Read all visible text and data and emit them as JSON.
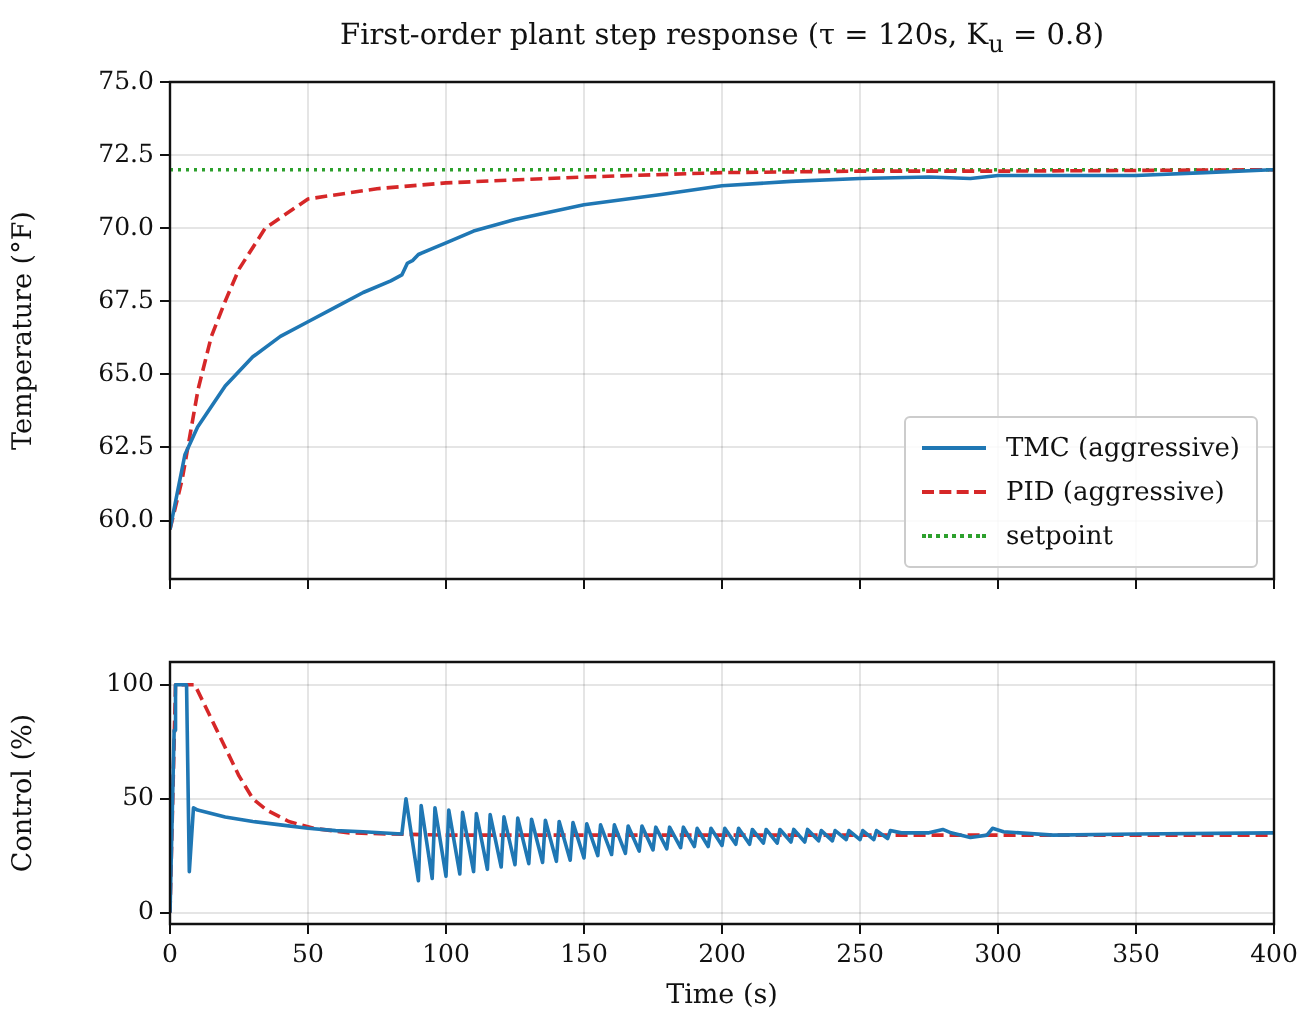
{
  "chart_data": [
    {
      "type": "line",
      "title": "First-order plant step response (τ = 120s, K$_{u}$ = 0.8)",
      "ylabel": "Temperature (°F)",
      "xlim": [
        0,
        400
      ],
      "xticks": [
        0,
        50,
        100,
        150,
        200,
        250,
        300,
        350,
        400
      ],
      "ylim": [
        58,
        75
      ],
      "yticks": [
        {
          "value": 60,
          "label": "60.0"
        },
        {
          "value": 62.5,
          "label": "62.5"
        },
        {
          "value": 65,
          "label": "65.0"
        },
        {
          "value": 67.5,
          "label": "67.5"
        },
        {
          "value": 70,
          "label": "70.0"
        },
        {
          "value": 72.5,
          "label": "72.5"
        },
        {
          "value": 75,
          "label": "75.0"
        }
      ],
      "grid": true,
      "legend": "bottom right",
      "tick_labels": "y",
      "series": [
        {
          "name": "TMC (aggressive)",
          "color": "#1f77b4",
          "line_style": "solid",
          "x": [
            0,
            5.4,
            10,
            20,
            30,
            40,
            50,
            60,
            70,
            80,
            84,
            86,
            88,
            90,
            95,
            100,
            110,
            125,
            150,
            178,
            200,
            225,
            250,
            275,
            290,
            300,
            325,
            350,
            375,
            400
          ],
          "values": [
            59.7,
            62.25,
            63.2,
            64.6,
            65.6,
            66.3,
            66.8,
            67.3,
            67.8,
            68.2,
            68.4,
            68.8,
            68.9,
            69.1,
            69.3,
            69.5,
            69.9,
            70.3,
            70.8,
            71.15,
            71.45,
            71.6,
            71.7,
            71.75,
            71.7,
            71.8,
            71.8,
            71.8,
            71.9,
            72.0
          ]
        },
        {
          "name": "PID (aggressive)",
          "color": "#d62728",
          "line_style": "dashed",
          "x": [
            0,
            4.4,
            10.2,
            15,
            20,
            25,
            34.5,
            50,
            75,
            100,
            150,
            200,
            250,
            300,
            400
          ],
          "values": [
            59.7,
            61.4,
            64.5,
            66.3,
            67.5,
            68.6,
            70.0,
            71.0,
            71.35,
            71.55,
            71.75,
            71.9,
            71.95,
            71.95,
            72.0
          ]
        },
        {
          "name": "setpoint",
          "color": "#2ca02c",
          "line_style": "dotted",
          "x": [
            0,
            400
          ],
          "values": [
            72,
            72
          ]
        }
      ]
    },
    {
      "type": "line",
      "xlabel": "Time (s)",
      "ylabel": "Control (%)",
      "xlim": [
        0,
        400
      ],
      "xticks": [
        0,
        50,
        100,
        150,
        200,
        250,
        300,
        350,
        400
      ],
      "ylim": [
        -5,
        110
      ],
      "yticks": [
        0,
        50,
        100
      ],
      "grid": true,
      "series": [
        {
          "color": "#1f77b4",
          "line_style": "solid",
          "x": [
            0,
            1.5,
            2,
            6,
            7,
            8.5,
            10,
            20,
            30,
            40,
            50,
            60,
            70,
            84,
            85.5,
            90,
            91,
            95,
            96,
            100,
            101,
            105,
            106,
            110,
            111,
            115,
            116,
            120,
            121,
            125,
            126,
            130,
            131,
            135,
            136,
            140,
            141,
            145,
            146,
            150,
            151,
            155,
            156,
            160,
            161,
            165,
            166,
            170,
            171,
            175,
            176,
            180,
            181,
            185,
            186,
            190,
            191,
            195,
            196,
            200,
            201,
            205,
            206,
            210,
            211,
            215,
            216,
            220,
            221,
            225,
            226,
            230,
            231,
            235,
            236,
            240,
            241,
            245,
            246,
            250,
            251,
            255,
            256,
            260,
            261,
            265,
            275,
            280,
            283,
            290,
            296,
            298,
            302,
            320,
            350,
            400
          ],
          "values": [
            0,
            80,
            100,
            100,
            18,
            46,
            45,
            42,
            40,
            38.5,
            37,
            36,
            35.5,
            34.5,
            50,
            14,
            47,
            15,
            46,
            16,
            45,
            17,
            44,
            18,
            43.5,
            19,
            43,
            20,
            42,
            21,
            41.5,
            21.5,
            41,
            22,
            40.5,
            22.5,
            40,
            23,
            39.5,
            24,
            39,
            25,
            38.5,
            25.5,
            38.5,
            26,
            38,
            27,
            38,
            27.5,
            37.5,
            28,
            37.5,
            28.5,
            37.5,
            29,
            37,
            29,
            37,
            29.5,
            37,
            30,
            37,
            30,
            36.5,
            30.5,
            36.5,
            30.5,
            36.5,
            31,
            36.5,
            31,
            36.5,
            31.5,
            36,
            31.5,
            36,
            32,
            36,
            32,
            36,
            32,
            36,
            32.5,
            36,
            35,
            35,
            36.5,
            35,
            33,
            34,
            37,
            35.5,
            34,
            34.5,
            35
          ]
        },
        {
          "color": "#d62728",
          "line_style": "dashed",
          "x": [
            0,
            2,
            9,
            13,
            17,
            21,
            25,
            30,
            35,
            43,
            52,
            65,
            80,
            100,
            400
          ],
          "values": [
            0,
            100,
            100,
            90,
            80,
            70,
            60,
            50,
            45,
            40,
            37,
            35,
            34.5,
            34,
            34
          ]
        }
      ]
    }
  ]
}
